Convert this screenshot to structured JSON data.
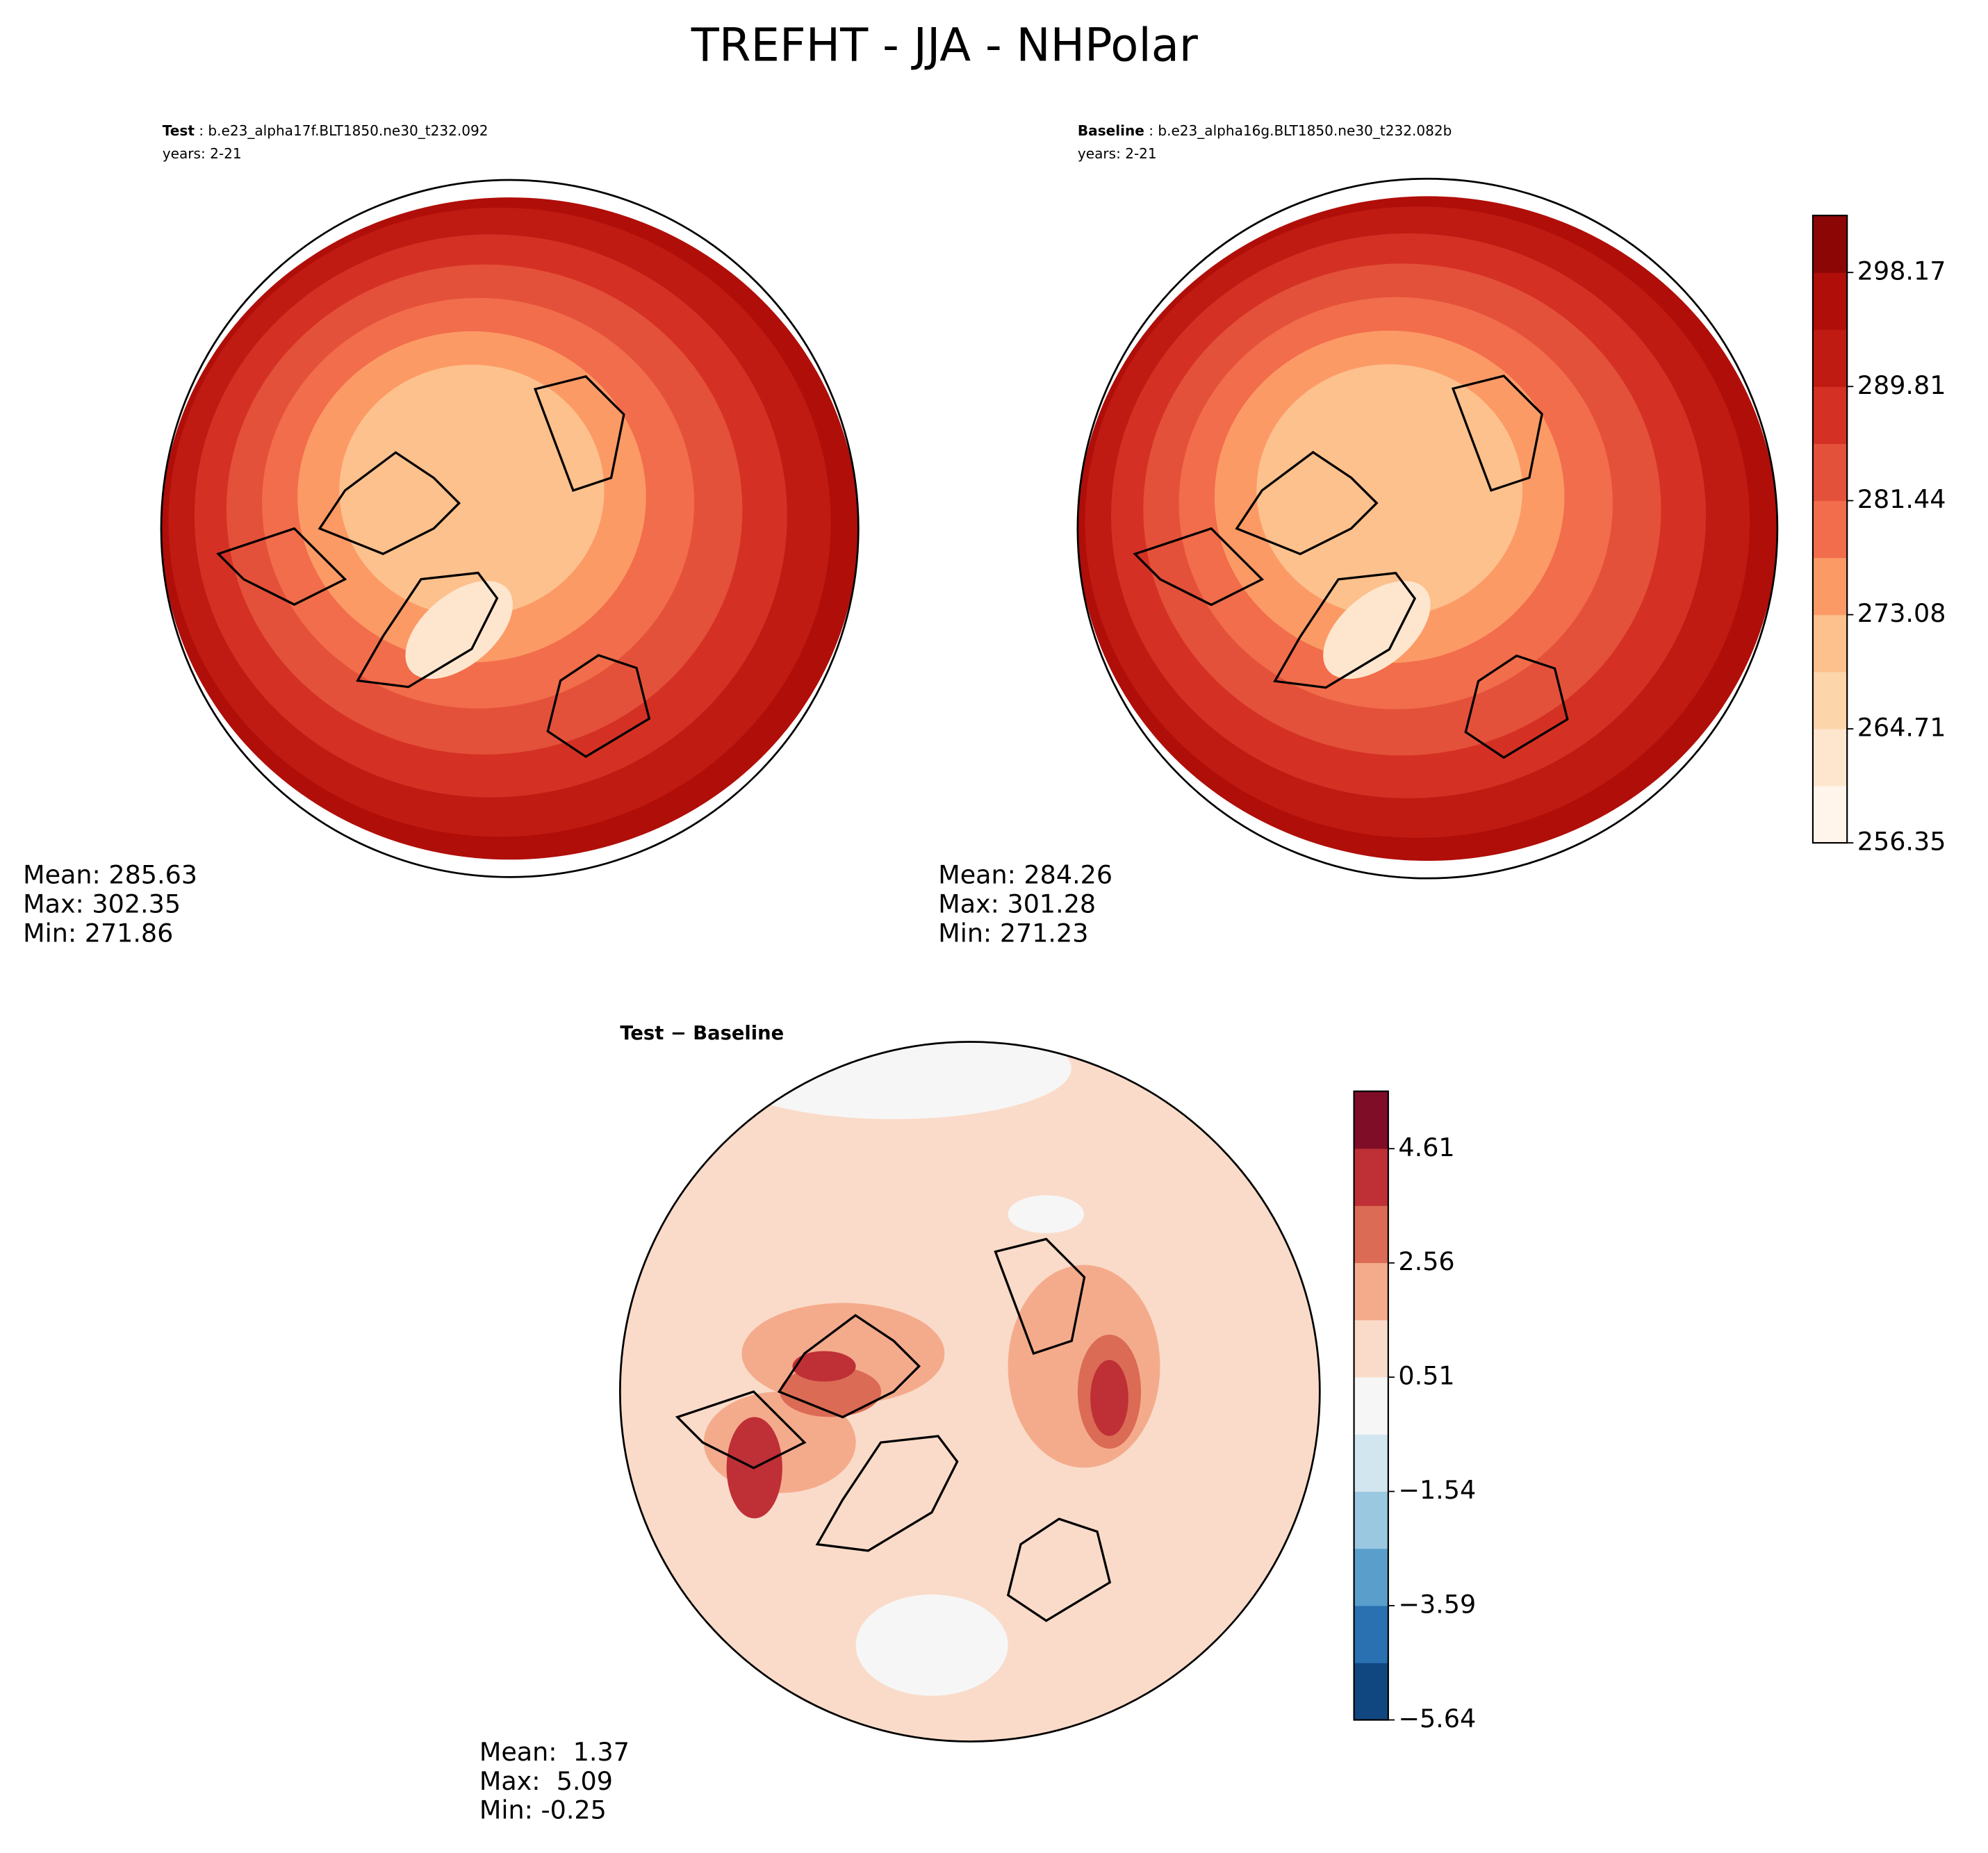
{
  "title": "TREFHT - JJA - NHPolar",
  "chart_data": [
    {
      "type": "map",
      "label_bold": "Test",
      "label": " : b.e23_alpha17f.BLT1850.ne30_t232.092",
      "years": "years: 2-21",
      "stats": [
        "Mean: 285.63",
        "Max: 302.35",
        "Min: 271.86"
      ]
    },
    {
      "type": "map",
      "label_bold": "Baseline",
      "label": " : b.e23_alpha16g.BLT1850.ne30_t232.082b",
      "years": "years: 2-21",
      "stats": [
        "Mean: 284.26",
        "Max: 301.28",
        "Min: 271.23"
      ],
      "colorbar": {
        "clim": [
          256.35,
          302.35
        ],
        "ticks": [
          256.35,
          264.71,
          273.08,
          281.44,
          289.81,
          298.17
        ],
        "colors": [
          "#fff5eb",
          "#fee6ce",
          "#fdd5ab",
          "#fdc18d",
          "#fc9a66",
          "#f26d4b",
          "#e4513a",
          "#d43124",
          "#c01b12",
          "#b00e09",
          "#8c0606"
        ]
      }
    },
    {
      "type": "map",
      "label_bold": "Test − Baseline",
      "stats": [
        "Mean:  1.37",
        "Max:  5.09",
        "Min: -0.25"
      ],
      "colorbar": {
        "clim": [
          -5.64,
          5.64
        ],
        "ticks": [
          {
            "value": -5.64,
            "label": "−5.64"
          },
          {
            "value": -3.59,
            "label": "−3.59"
          },
          {
            "value": -1.54,
            "label": "−1.54"
          },
          0.51,
          2.56,
          4.61
        ],
        "colors": [
          "#114781",
          "#2a71b2",
          "#5a9ecc",
          "#9ac8e0",
          "#d2e6f0",
          "#f6f6f6",
          "#fadbc9",
          "#f4ab8c",
          "#db6b55",
          "#be3036",
          "#7f0d27"
        ]
      }
    }
  ]
}
